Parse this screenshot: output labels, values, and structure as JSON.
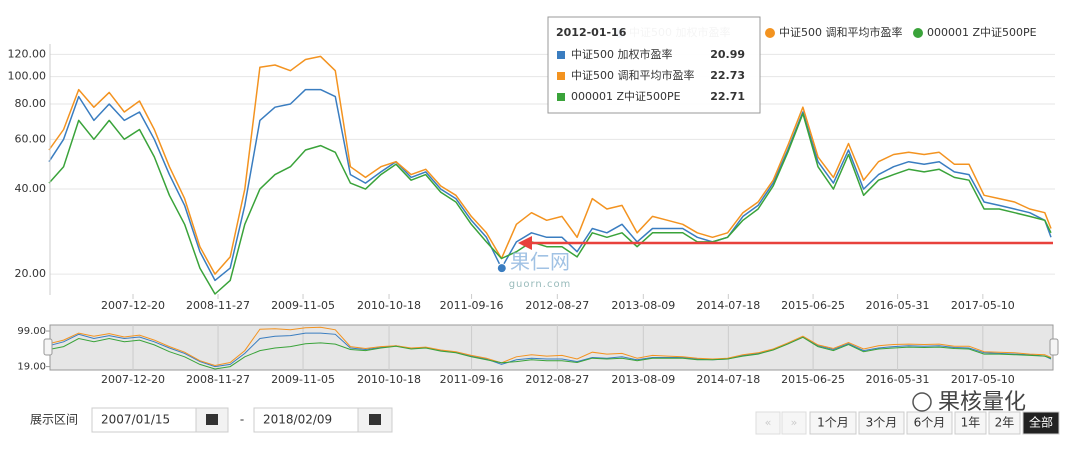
{
  "chart_data": {
    "type": "line",
    "log_scale": true,
    "grid": true,
    "legend": "top-right",
    "x": [
      "2007-01-15",
      "2007-03-15",
      "2007-05-15",
      "2007-07-15",
      "2007-09-15",
      "2007-11-15",
      "2008-01-15",
      "2008-03-15",
      "2008-05-15",
      "2008-07-15",
      "2008-09-15",
      "2008-11-15",
      "2009-01-15",
      "2009-03-15",
      "2009-05-15",
      "2009-07-15",
      "2009-09-15",
      "2009-11-15",
      "2010-01-15",
      "2010-03-15",
      "2010-05-15",
      "2010-07-15",
      "2010-09-15",
      "2010-11-15",
      "2011-01-15",
      "2011-03-15",
      "2011-05-15",
      "2011-07-15",
      "2011-09-15",
      "2011-11-15",
      "2012-01-15",
      "2012-03-15",
      "2012-05-15",
      "2012-07-15",
      "2012-09-15",
      "2012-11-15",
      "2013-01-15",
      "2013-03-15",
      "2013-05-15",
      "2013-07-15",
      "2013-09-15",
      "2013-11-15",
      "2014-01-15",
      "2014-03-15",
      "2014-05-15",
      "2014-07-15",
      "2014-09-15",
      "2014-11-15",
      "2015-01-15",
      "2015-03-15",
      "2015-05-15",
      "2015-07-15",
      "2015-09-15",
      "2015-11-15",
      "2016-01-15",
      "2016-03-15",
      "2016-05-15",
      "2016-07-15",
      "2016-09-15",
      "2016-11-15",
      "2017-01-15",
      "2017-03-15",
      "2017-05-15",
      "2017-07-15",
      "2017-09-15",
      "2017-11-15",
      "2018-01-15",
      "2018-02-09"
    ],
    "series": [
      {
        "name": "中证500 加权市盈率",
        "color": "#3a7dc0",
        "values": [
          50,
          60,
          85,
          70,
          80,
          70,
          75,
          60,
          45,
          35,
          24,
          19,
          21,
          35,
          70,
          78,
          80,
          90,
          90,
          85,
          45,
          42,
          46,
          50,
          44,
          46,
          40,
          37,
          31,
          27,
          21,
          26,
          28,
          27,
          27,
          24,
          29,
          28,
          30,
          26,
          29,
          29,
          29,
          27,
          26,
          27,
          32,
          35,
          42,
          55,
          75,
          50,
          42,
          55,
          40,
          45,
          48,
          50,
          49,
          50,
          46,
          45,
          36,
          35,
          34,
          33,
          31,
          27
        ]
      },
      {
        "name": "中证500 调和平均市盈率",
        "color": "#f39320",
        "values": [
          55,
          65,
          90,
          78,
          88,
          75,
          82,
          65,
          48,
          37,
          25,
          20,
          23,
          40,
          108,
          110,
          105,
          115,
          118,
          105,
          48,
          44,
          48,
          50,
          45,
          47,
          41,
          38,
          32,
          28,
          22.7,
          30,
          33,
          31,
          32,
          27,
          37,
          34,
          35,
          28,
          32,
          31,
          30,
          28,
          27,
          28,
          33,
          36,
          43,
          57,
          78,
          52,
          44,
          58,
          43,
          50,
          53,
          54,
          53,
          54,
          49,
          49,
          38,
          37,
          36,
          34,
          33,
          29
        ]
      },
      {
        "name": "000001 Z中证500PE",
        "color": "#3aa33a",
        "values": [
          42,
          48,
          70,
          60,
          70,
          60,
          65,
          52,
          38,
          30,
          21,
          17,
          19,
          30,
          40,
          45,
          48,
          55,
          57,
          54,
          42,
          40,
          45,
          49,
          43,
          45,
          39,
          36,
          30,
          26,
          22.7,
          24,
          26,
          25,
          25,
          23,
          28,
          27,
          28,
          25,
          28,
          28,
          28,
          26,
          26,
          27,
          31,
          34,
          41,
          54,
          74,
          48,
          40,
          53,
          38,
          43,
          45,
          47,
          46,
          47,
          44,
          43,
          34,
          34,
          33,
          32,
          31,
          28
        ]
      }
    ],
    "xlim": [
      "2007-01-15",
      "2018-02-09"
    ],
    "xticks": [
      "2007-12-20",
      "2008-11-27",
      "2009-11-05",
      "2010-10-18",
      "2011-09-16",
      "2012-08-27",
      "2013-08-09",
      "2014-07-18",
      "2015-06-25",
      "2016-05-31",
      "2017-05-10"
    ],
    "ylim": [
      17,
      130
    ],
    "yticks": [
      {
        "value": 20,
        "label": "20.00"
      },
      {
        "value": 40,
        "label": "40.00"
      },
      {
        "value": 60,
        "label": "60.00"
      },
      {
        "value": 80,
        "label": "80.00"
      },
      {
        "value": 100,
        "label": "100.00"
      },
      {
        "value": 120,
        "label": "120.00"
      }
    ],
    "tooltip": {
      "date": "2012-01-16",
      "values": [
        20.99,
        22.73,
        22.71
      ]
    },
    "annotations": {
      "watermark": "果仁网",
      "watermark_url": "guorn.com"
    },
    "navigator": {
      "ylim": [
        17,
        125
      ],
      "yticks": [
        {
          "value": 99,
          "label": "99.00"
        },
        {
          "value": 19,
          "label": "19.00"
        }
      ]
    }
  },
  "controls": {
    "range_label": "展示区间",
    "start": "2007/01/15",
    "separator": "-",
    "end": "2018/02/09",
    "buttons": [
      "1个月",
      "3个月",
      "6个月",
      "1年",
      "2年",
      "全部"
    ],
    "selected_button": 5,
    "logo": "果核量化"
  }
}
